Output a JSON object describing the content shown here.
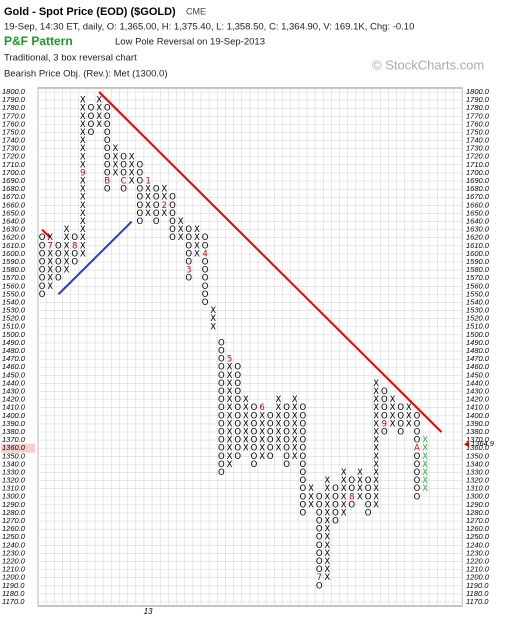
{
  "chart_data": {
    "type": "pnf",
    "title": "Gold - Spot Price (EOD) ($GOLD)",
    "exchange": "CME",
    "subtitle": "19-Sep, 14:30 ET, daily, O: 1,365.00, H: 1,375.40, L: 1,358.50, C: 1,364.90, V: 169.1K, Chg: -0.10",
    "pattern_label": "P&F Pattern",
    "pattern": "Low Pole Reversal on 19-Sep-2013",
    "chart_desc": "Traditional, 3 box reversal chart",
    "price_objective": "Bearish Price Obj. (Rev.): Met (1300.0)",
    "watermark": "© StockCharts.com",
    "box_size": 10,
    "ylim": [
      1170,
      1800
    ],
    "yticks": [
      {
        "value": 1170,
        "label": "1170.0"
      },
      {
        "value": 1180,
        "label": "1180.0"
      },
      {
        "value": 1190,
        "label": "1190.0"
      },
      {
        "value": 1200,
        "label": "1200.0"
      },
      {
        "value": 1210,
        "label": "1210.0"
      },
      {
        "value": 1220,
        "label": "1220.0"
      },
      {
        "value": 1230,
        "label": "1230.0"
      },
      {
        "value": 1240,
        "label": "1240.0"
      },
      {
        "value": 1250,
        "label": "1250.0"
      },
      {
        "value": 1260,
        "label": "1260.0"
      },
      {
        "value": 1270,
        "label": "1270.0"
      },
      {
        "value": 1280,
        "label": "1280.0"
      },
      {
        "value": 1290,
        "label": "1290.0"
      },
      {
        "value": 1300,
        "label": "1300.0"
      },
      {
        "value": 1310,
        "label": "1310.0"
      },
      {
        "value": 1320,
        "label": "1320.0"
      },
      {
        "value": 1330,
        "label": "1330.0"
      },
      {
        "value": 1340,
        "label": "1340.0"
      },
      {
        "value": 1350,
        "label": "1350.0"
      },
      {
        "value": 1360,
        "label": "1360.0"
      },
      {
        "value": 1370,
        "label": "1370.0"
      },
      {
        "value": 1380,
        "label": "1380.0"
      },
      {
        "value": 1390,
        "label": "1390.0"
      },
      {
        "value": 1400,
        "label": "1400.0"
      },
      {
        "value": 1410,
        "label": "1410.0"
      },
      {
        "value": 1420,
        "label": "1420.0"
      },
      {
        "value": 1430,
        "label": "1430.0"
      },
      {
        "value": 1440,
        "label": "1440.0"
      },
      {
        "value": 1450,
        "label": "1450.0"
      },
      {
        "value": 1460,
        "label": "1460.0"
      },
      {
        "value": 1470,
        "label": "1470.0"
      },
      {
        "value": 1480,
        "label": "1480.0"
      },
      {
        "value": 1490,
        "label": "1490.0"
      },
      {
        "value": 1500,
        "label": "1500.0"
      },
      {
        "value": 1510,
        "label": "1510.0"
      },
      {
        "value": 1520,
        "label": "1520.0"
      },
      {
        "value": 1530,
        "label": "1530.0"
      },
      {
        "value": 1540,
        "label": "1540.0"
      },
      {
        "value": 1550,
        "label": "1550.0"
      },
      {
        "value": 1560,
        "label": "1560.0"
      },
      {
        "value": 1570,
        "label": "1570.0"
      },
      {
        "value": 1580,
        "label": "1580.0"
      },
      {
        "value": 1590,
        "label": "1590.0"
      },
      {
        "value": 1600,
        "label": "1600.0"
      },
      {
        "value": 1610,
        "label": "1610.0"
      },
      {
        "value": 1620,
        "label": "1620.0"
      },
      {
        "value": 1630,
        "label": "1630.0"
      },
      {
        "value": 1640,
        "label": "1640.0"
      },
      {
        "value": 1650,
        "label": "1650.0"
      },
      {
        "value": 1660,
        "label": "1660.0"
      },
      {
        "value": 1670,
        "label": "1670.0"
      },
      {
        "value": 1680,
        "label": "1680.0"
      },
      {
        "value": 1690,
        "label": "1690.0"
      },
      {
        "value": 1700,
        "label": "1700.0"
      },
      {
        "value": 1710,
        "label": "1710.0"
      },
      {
        "value": 1720,
        "label": "1720.0"
      },
      {
        "value": 1730,
        "label": "1730.0"
      },
      {
        "value": 1740,
        "label": "1740.0"
      },
      {
        "value": 1750,
        "label": "1750.0"
      },
      {
        "value": 1760,
        "label": "1760.0"
      },
      {
        "value": 1770,
        "label": "1770.0"
      },
      {
        "value": 1780,
        "label": "1780.0"
      },
      {
        "value": 1790,
        "label": "1790.0"
      },
      {
        "value": 1800,
        "label": "1800.0"
      }
    ],
    "highlight_tick": 1360,
    "last_price": 1364.9,
    "grid": true,
    "x_color": "#000000",
    "o_color": "#000000",
    "current_color": "#33aa33",
    "mark_color": "#cc0000",
    "columns": [
      {
        "type": "O",
        "low": 1550,
        "high": 1620
      },
      {
        "type": "X",
        "low": 1560,
        "high": 1620,
        "marks": [
          {
            "value": 1610,
            "label": "7"
          }
        ]
      },
      {
        "type": "O",
        "low": 1570,
        "high": 1610
      },
      {
        "type": "X",
        "low": 1580,
        "high": 1630
      },
      {
        "type": "O",
        "low": 1590,
        "high": 1620,
        "marks": [
          {
            "value": 1610,
            "label": "8"
          }
        ]
      },
      {
        "type": "X",
        "low": 1600,
        "high": 1790,
        "marks": [
          {
            "value": 1700,
            "label": "9"
          }
        ]
      },
      {
        "type": "O",
        "low": 1750,
        "high": 1780
      },
      {
        "type": "X",
        "low": 1760,
        "high": 1790
      },
      {
        "type": "O",
        "low": 1680,
        "high": 1780,
        "marks": [
          {
            "value": 1690,
            "label": "B"
          }
        ]
      },
      {
        "type": "X",
        "low": 1700,
        "high": 1730
      },
      {
        "type": "O",
        "low": 1680,
        "high": 1720,
        "marks": [
          {
            "value": 1690,
            "label": "C"
          }
        ]
      },
      {
        "type": "X",
        "low": 1690,
        "high": 1720
      },
      {
        "type": "O",
        "low": 1640,
        "high": 1710
      },
      {
        "type": "X",
        "low": 1650,
        "high": 1690,
        "marks": [
          {
            "value": 1690,
            "label": "1"
          }
        ]
      },
      {
        "type": "O",
        "low": 1640,
        "high": 1680
      },
      {
        "type": "X",
        "low": 1650,
        "high": 1680,
        "marks": [
          {
            "value": 1660,
            "label": "2"
          }
        ]
      },
      {
        "type": "O",
        "low": 1620,
        "high": 1670
      },
      {
        "type": "X",
        "low": 1620,
        "high": 1640
      },
      {
        "type": "O",
        "low": 1570,
        "high": 1630,
        "marks": [
          {
            "value": 1580,
            "label": "3"
          }
        ]
      },
      {
        "type": "X",
        "low": 1600,
        "high": 1630
      },
      {
        "type": "O",
        "low": 1540,
        "high": 1620,
        "marks": [
          {
            "value": 1600,
            "label": "4"
          }
        ]
      },
      {
        "type": "X",
        "low": 1510,
        "high": 1530
      },
      {
        "type": "O",
        "low": 1330,
        "high": 1490
      },
      {
        "type": "X",
        "low": 1340,
        "high": 1470,
        "marks": [
          {
            "value": 1470,
            "label": "5"
          }
        ]
      },
      {
        "type": "O",
        "low": 1350,
        "high": 1460
      },
      {
        "type": "X",
        "low": 1360,
        "high": 1420
      },
      {
        "type": "O",
        "low": 1340,
        "high": 1410
      },
      {
        "type": "X",
        "low": 1350,
        "high": 1410,
        "marks": [
          {
            "value": 1410,
            "label": "6"
          }
        ]
      },
      {
        "type": "O",
        "low": 1350,
        "high": 1400
      },
      {
        "type": "X",
        "low": 1360,
        "high": 1420
      },
      {
        "type": "O",
        "low": 1340,
        "high": 1410
      },
      {
        "type": "X",
        "low": 1350,
        "high": 1420
      },
      {
        "type": "O",
        "low": 1280,
        "high": 1410
      },
      {
        "type": "X",
        "low": 1290,
        "high": 1310
      },
      {
        "type": "O",
        "low": 1190,
        "high": 1300,
        "marks": [
          {
            "value": 1200,
            "label": "7"
          }
        ]
      },
      {
        "type": "X",
        "low": 1200,
        "high": 1320
      },
      {
        "type": "O",
        "low": 1270,
        "high": 1310
      },
      {
        "type": "X",
        "low": 1280,
        "high": 1330
      },
      {
        "type": "O",
        "low": 1290,
        "high": 1320,
        "marks": [
          {
            "value": 1300,
            "label": "8"
          }
        ]
      },
      {
        "type": "X",
        "low": 1300,
        "high": 1330
      },
      {
        "type": "O",
        "low": 1280,
        "high": 1320
      },
      {
        "type": "X",
        "low": 1290,
        "high": 1440
      },
      {
        "type": "O",
        "low": 1380,
        "high": 1430,
        "marks": [
          {
            "value": 1390,
            "label": "9"
          }
        ]
      },
      {
        "type": "X",
        "low": 1390,
        "high": 1420
      },
      {
        "type": "O",
        "low": 1380,
        "high": 1410
      },
      {
        "type": "X",
        "low": 1390,
        "high": 1410
      },
      {
        "type": "O",
        "low": 1300,
        "high": 1400,
        "marks": [
          {
            "value": 1360,
            "label": "A"
          }
        ]
      },
      {
        "type": "X",
        "low": 1310,
        "high": 1370
      }
    ],
    "trendlines": [
      {
        "color": "#ee0000",
        "cols": [
          7,
          49
        ],
        "values": [
          1800,
          1380
        ]
      },
      {
        "color": "#ee0000",
        "cols": [
          0,
          1
        ],
        "values": [
          1630,
          1620
        ]
      },
      {
        "color": "#1f3fdd",
        "cols": [
          2,
          11
        ],
        "values": [
          1550,
          1640
        ]
      }
    ],
    "x_labels": [
      {
        "column": 13,
        "label": "13"
      }
    ]
  }
}
